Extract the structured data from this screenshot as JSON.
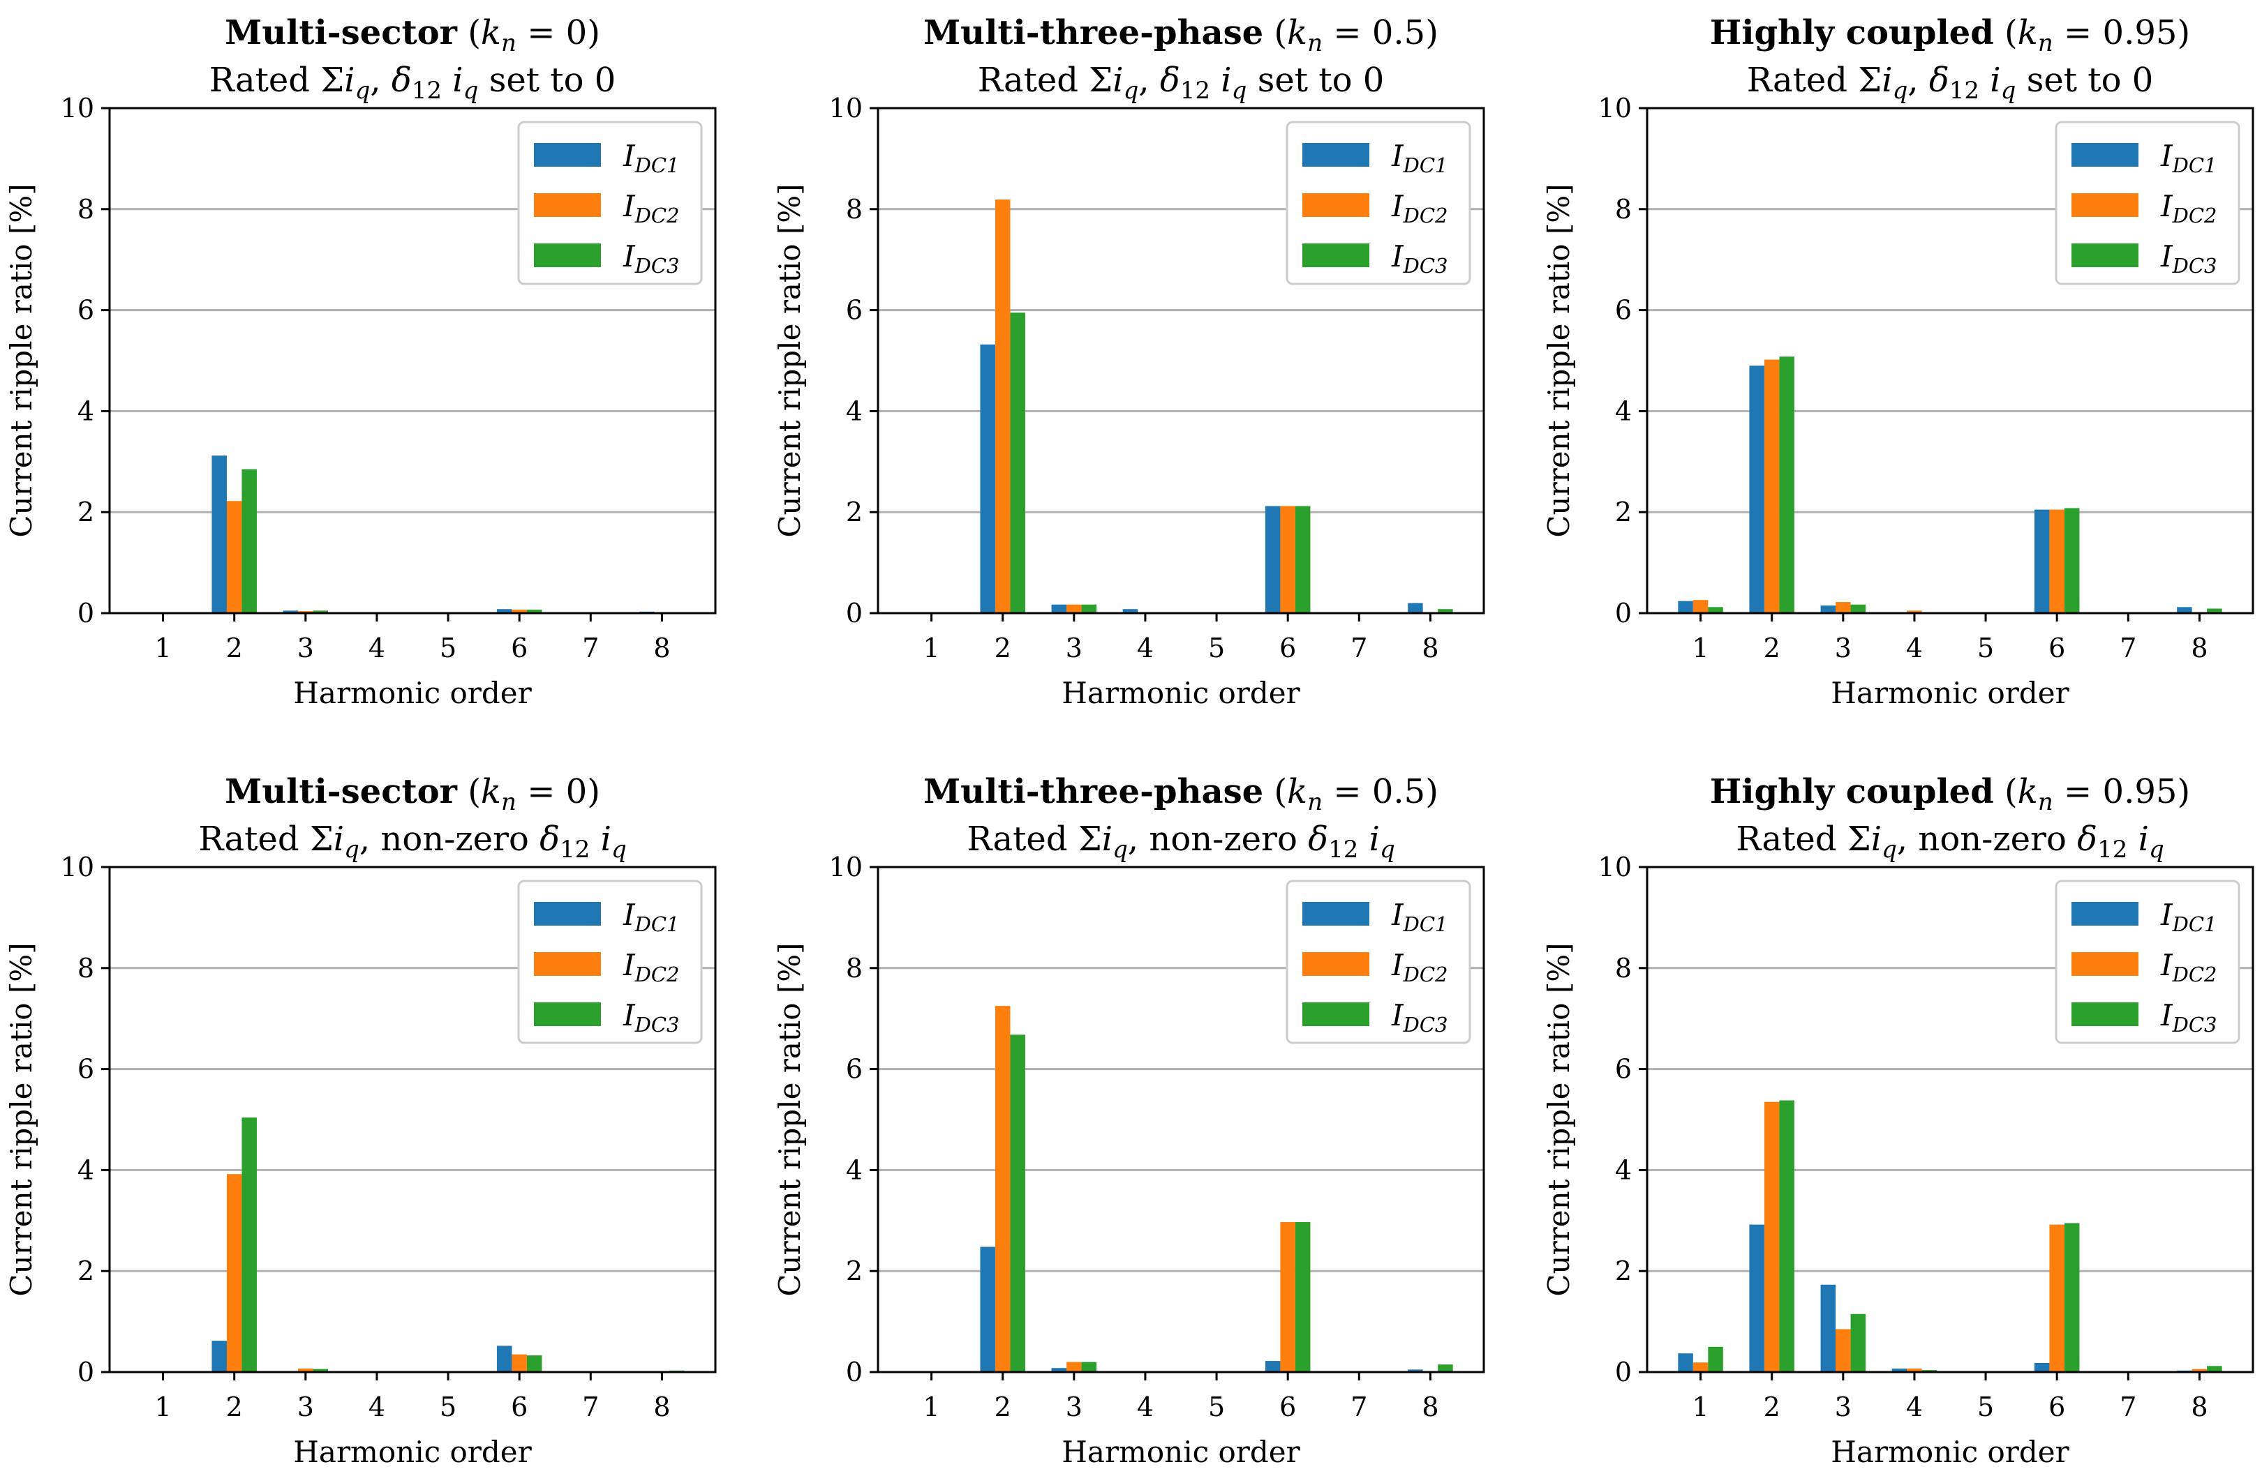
{
  "figure": {
    "series_names": [
      "I_DC1",
      "I_DC2",
      "I_DC3"
    ],
    "series_colors": [
      "#1f77b4",
      "#ff7f0e",
      "#2ca02c"
    ]
  },
  "chart_data": [
    {
      "type": "bar",
      "title_bold": "Multi-sector",
      "title_param": "(k_n = 0)",
      "subtitle": "Rated Σi_q, δ12 i_q set to 0",
      "xlabel": "Harmonic order",
      "ylabel": "Current ripple ratio [%]",
      "ylim": [
        0,
        10
      ],
      "yticks": [
        0,
        2,
        4,
        6,
        8,
        10
      ],
      "categories": [
        "1",
        "2",
        "3",
        "4",
        "5",
        "6",
        "7",
        "8"
      ],
      "grid": "horizontal",
      "legend_position": "top-right",
      "series": [
        {
          "name": "I_DC1",
          "values": [
            0.0,
            3.12,
            0.05,
            0.0,
            0.0,
            0.08,
            0.0,
            0.03
          ]
        },
        {
          "name": "I_DC2",
          "values": [
            0.0,
            2.22,
            0.04,
            0.0,
            0.0,
            0.07,
            0.0,
            0.0
          ]
        },
        {
          "name": "I_DC3",
          "values": [
            0.0,
            2.85,
            0.05,
            0.0,
            0.0,
            0.07,
            0.0,
            0.02
          ]
        }
      ]
    },
    {
      "type": "bar",
      "title_bold": "Multi-three-phase",
      "title_param": "(k_n = 0.5)",
      "subtitle": "Rated Σi_q, δ12 i_q set to 0",
      "xlabel": "Harmonic order",
      "ylabel": "Current ripple ratio [%]",
      "ylim": [
        0,
        10
      ],
      "yticks": [
        0,
        2,
        4,
        6,
        8,
        10
      ],
      "categories": [
        "1",
        "2",
        "3",
        "4",
        "5",
        "6",
        "7",
        "8"
      ],
      "grid": "horizontal",
      "legend_position": "top-right",
      "series": [
        {
          "name": "I_DC1",
          "values": [
            0.0,
            5.32,
            0.17,
            0.08,
            0.0,
            2.12,
            0.0,
            0.2
          ]
        },
        {
          "name": "I_DC2",
          "values": [
            0.0,
            8.19,
            0.17,
            0.0,
            0.0,
            2.12,
            0.0,
            0.0
          ]
        },
        {
          "name": "I_DC3",
          "values": [
            0.0,
            5.95,
            0.17,
            0.0,
            0.0,
            2.12,
            0.0,
            0.08
          ]
        }
      ]
    },
    {
      "type": "bar",
      "title_bold": "Highly coupled",
      "title_param": "(k_n = 0.95)",
      "subtitle": "Rated Σi_q, δ12 i_q set to 0",
      "xlabel": "Harmonic order",
      "ylabel": "Current ripple ratio [%]",
      "ylim": [
        0,
        10
      ],
      "yticks": [
        0,
        2,
        4,
        6,
        8,
        10
      ],
      "categories": [
        "1",
        "2",
        "3",
        "4",
        "5",
        "6",
        "7",
        "8"
      ],
      "grid": "horizontal",
      "legend_position": "top-right",
      "series": [
        {
          "name": "I_DC1",
          "values": [
            0.24,
            4.9,
            0.15,
            0.0,
            0.0,
            2.05,
            0.0,
            0.12
          ]
        },
        {
          "name": "I_DC2",
          "values": [
            0.26,
            5.02,
            0.22,
            0.05,
            0.0,
            2.05,
            0.0,
            0.02
          ]
        },
        {
          "name": "I_DC3",
          "values": [
            0.12,
            5.08,
            0.17,
            0.0,
            0.0,
            2.08,
            0.0,
            0.09
          ]
        }
      ]
    },
    {
      "type": "bar",
      "title_bold": "Multi-sector",
      "title_param": "(k_n = 0)",
      "subtitle": "Rated Σi_q, non-zero δ12 i_q",
      "xlabel": "Harmonic order",
      "ylabel": "Current ripple ratio [%]",
      "ylim": [
        0,
        10
      ],
      "yticks": [
        0,
        2,
        4,
        6,
        8,
        10
      ],
      "categories": [
        "1",
        "2",
        "3",
        "4",
        "5",
        "6",
        "7",
        "8"
      ],
      "grid": "horizontal",
      "legend_position": "top-right",
      "series": [
        {
          "name": "I_DC1",
          "values": [
            0.0,
            0.62,
            0.0,
            0.0,
            0.0,
            0.52,
            0.0,
            0.0
          ]
        },
        {
          "name": "I_DC2",
          "values": [
            0.0,
            3.92,
            0.07,
            0.0,
            0.0,
            0.35,
            0.0,
            0.0
          ]
        },
        {
          "name": "I_DC3",
          "values": [
            0.0,
            5.04,
            0.06,
            0.0,
            0.0,
            0.33,
            0.0,
            0.03
          ]
        }
      ]
    },
    {
      "type": "bar",
      "title_bold": "Multi-three-phase",
      "title_param": "(k_n = 0.5)",
      "subtitle": "Rated Σi_q, non-zero δ12 i_q",
      "xlabel": "Harmonic order",
      "ylabel": "Current ripple ratio [%]",
      "ylim": [
        0,
        10
      ],
      "yticks": [
        0,
        2,
        4,
        6,
        8,
        10
      ],
      "categories": [
        "1",
        "2",
        "3",
        "4",
        "5",
        "6",
        "7",
        "8"
      ],
      "grid": "horizontal",
      "legend_position": "top-right",
      "series": [
        {
          "name": "I_DC1",
          "values": [
            0.0,
            2.48,
            0.08,
            0.0,
            0.0,
            0.22,
            0.0,
            0.05
          ]
        },
        {
          "name": "I_DC2",
          "values": [
            0.0,
            7.25,
            0.2,
            0.0,
            0.0,
            2.97,
            0.0,
            0.0
          ]
        },
        {
          "name": "I_DC3",
          "values": [
            0.0,
            6.68,
            0.2,
            0.0,
            0.0,
            2.97,
            0.0,
            0.15
          ]
        }
      ]
    },
    {
      "type": "bar",
      "title_bold": "Highly coupled",
      "title_param": "(k_n = 0.95)",
      "subtitle": "Rated Σi_q, non-zero δ12 i_q",
      "xlabel": "Harmonic order",
      "ylabel": "Current ripple ratio [%]",
      "ylim": [
        0,
        10
      ],
      "yticks": [
        0,
        2,
        4,
        6,
        8,
        10
      ],
      "categories": [
        "1",
        "2",
        "3",
        "4",
        "5",
        "6",
        "7",
        "8"
      ],
      "grid": "horizontal",
      "legend_position": "top-right",
      "series": [
        {
          "name": "I_DC1",
          "values": [
            0.37,
            2.92,
            1.73,
            0.07,
            0.0,
            0.18,
            0.0,
            0.03
          ]
        },
        {
          "name": "I_DC2",
          "values": [
            0.19,
            5.35,
            0.85,
            0.07,
            0.0,
            2.92,
            0.0,
            0.06
          ]
        },
        {
          "name": "I_DC3",
          "values": [
            0.5,
            5.38,
            1.15,
            0.04,
            0.0,
            2.95,
            0.0,
            0.12
          ]
        }
      ]
    }
  ]
}
